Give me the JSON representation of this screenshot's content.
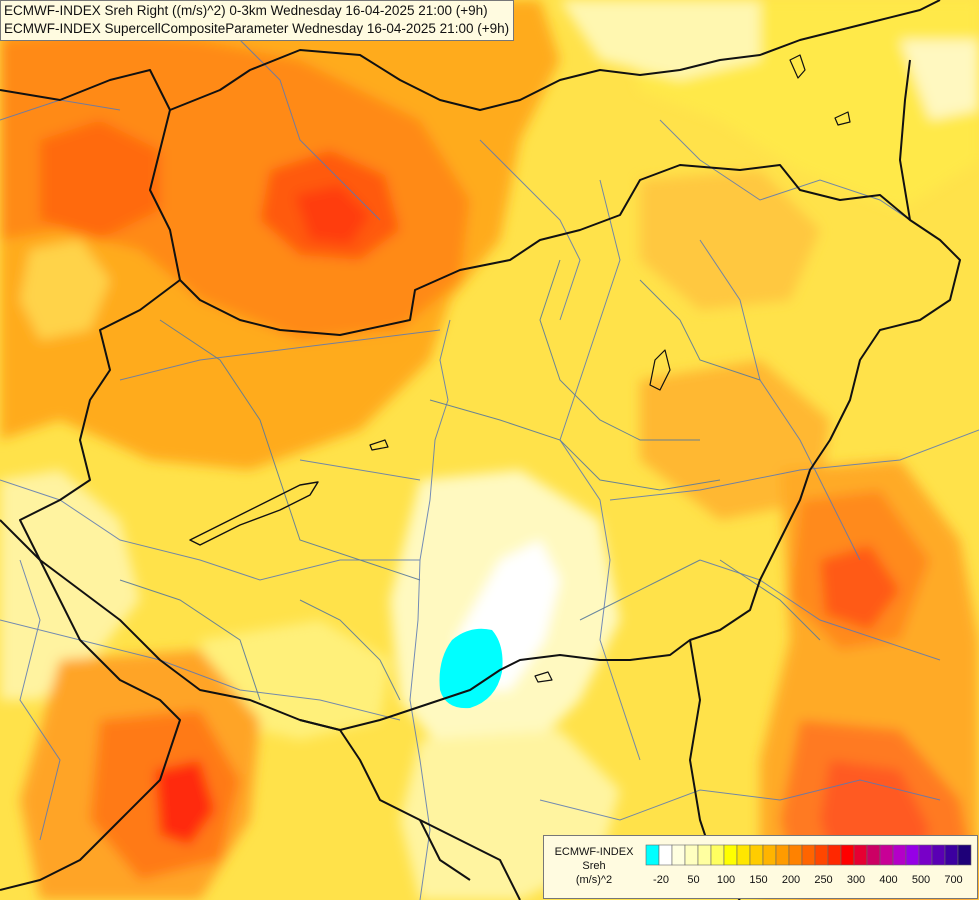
{
  "header": {
    "line1": "ECMWF-INDEX Sreh Right ((m/s)^2) 0-3km Wednesday 16-04-2025 21:00 (+9h)",
    "line2": "ECMWF-INDEX SupercellCompositeParameter Wednesday 16-04-2025 21:00 (+9h)"
  },
  "legend": {
    "title1": "ECMWF-INDEX",
    "title2": "Sreh",
    "unit": "(m/s)^2",
    "ticks": [
      "-20",
      "50",
      "100",
      "150",
      "200",
      "250",
      "300",
      "400",
      "500",
      "700"
    ],
    "colors": [
      "#00ffff",
      "#ffffff",
      "#ffffe0",
      "#ffffc0",
      "#ffffa0",
      "#ffff60",
      "#ffff00",
      "#ffe600",
      "#ffcc00",
      "#ffb400",
      "#ff9b00",
      "#ff8200",
      "#ff6400",
      "#ff4600",
      "#ff2800",
      "#ff0000",
      "#e60032",
      "#cc0064",
      "#c80096",
      "#b400c8",
      "#9600e6",
      "#7800c8",
      "#5a00b4",
      "#3c00a0",
      "#1e0078"
    ]
  }
}
